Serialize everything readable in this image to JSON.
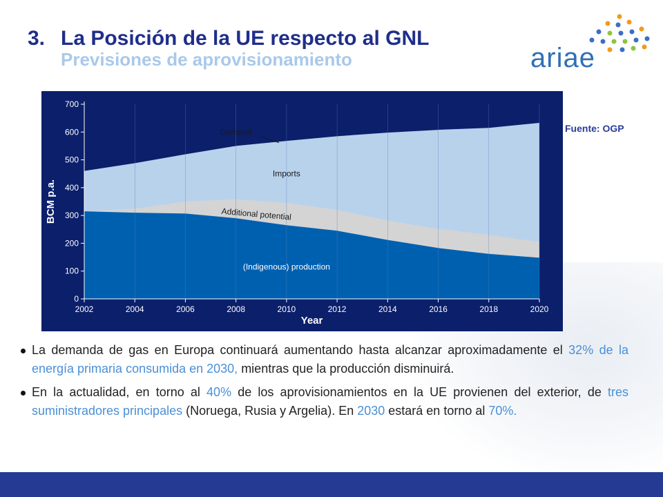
{
  "slide": {
    "number": "3.",
    "title": "La Posición de la UE respecto al GNL",
    "subtitle": "Previsiones de aprovisionamiento",
    "logo_text": "ariae",
    "source": "Fuente: OGP"
  },
  "colors": {
    "title": "#1f2e8a",
    "subtitle": "#a9c9ea",
    "chart_bg": "#0b1f6b",
    "production": "#0060b0",
    "additional": "#d4d4d4",
    "imports": "#b8d2ec",
    "highlight": "#4a8fd6",
    "footer": "#243a93"
  },
  "chart_data": {
    "type": "area",
    "xlabel": "Year",
    "ylabel": "BCM p.a.",
    "xlim": [
      2002,
      2020
    ],
    "ylim": [
      0,
      700
    ],
    "x_ticks": [
      "2002",
      "2004",
      "2006",
      "2008",
      "2010",
      "2012",
      "2014",
      "2016",
      "2018",
      "2020"
    ],
    "y_ticks": [
      "0",
      "100",
      "200",
      "300",
      "400",
      "500",
      "600",
      "700"
    ],
    "x": [
      2002,
      2004,
      2006,
      2008,
      2010,
      2012,
      2014,
      2016,
      2018,
      2020
    ],
    "series": [
      {
        "name": "(Indigenous) production",
        "values": [
          315,
          310,
          307,
          290,
          265,
          245,
          212,
          183,
          162,
          148
        ]
      },
      {
        "name": "Additional potential",
        "values": [
          315,
          325,
          350,
          358,
          345,
          320,
          282,
          252,
          230,
          205
        ]
      },
      {
        "name": "Demand",
        "values": [
          460,
          488,
          520,
          550,
          568,
          585,
          598,
          608,
          615,
          633
        ]
      }
    ],
    "annotations": [
      {
        "text": "Demand",
        "x": 2008,
        "y": 590
      },
      {
        "text": "Imports",
        "x": 2010,
        "y": 440
      },
      {
        "text": "Additional potential",
        "x": 2008.8,
        "y": 295
      },
      {
        "text": "(Indigenous) production",
        "x": 2010,
        "y": 105
      }
    ]
  },
  "bullets": [
    [
      {
        "text": "La demanda de gas en Europa continuará aumentando hasta alcanzar aproximadamente el ",
        "hl": false
      },
      {
        "text": "32% de la energía primaria consumida en 2030,",
        "hl": true
      },
      {
        "text": " mientras que la producción disminuirá.",
        "hl": false
      }
    ],
    [
      {
        "text": "En la actualidad, en torno al ",
        "hl": false
      },
      {
        "text": "40%",
        "hl": true
      },
      {
        "text": " de los aprovisionamientos en la UE provienen del exterior, de ",
        "hl": false
      },
      {
        "text": "tres suministradores principales",
        "hl": true
      },
      {
        "text": " (Noruega, Rusia y Argelia). En ",
        "hl": false
      },
      {
        "text": "2030",
        "hl": true
      },
      {
        "text": " estará en torno al ",
        "hl": false
      },
      {
        "text": "70%.",
        "hl": true
      }
    ]
  ]
}
